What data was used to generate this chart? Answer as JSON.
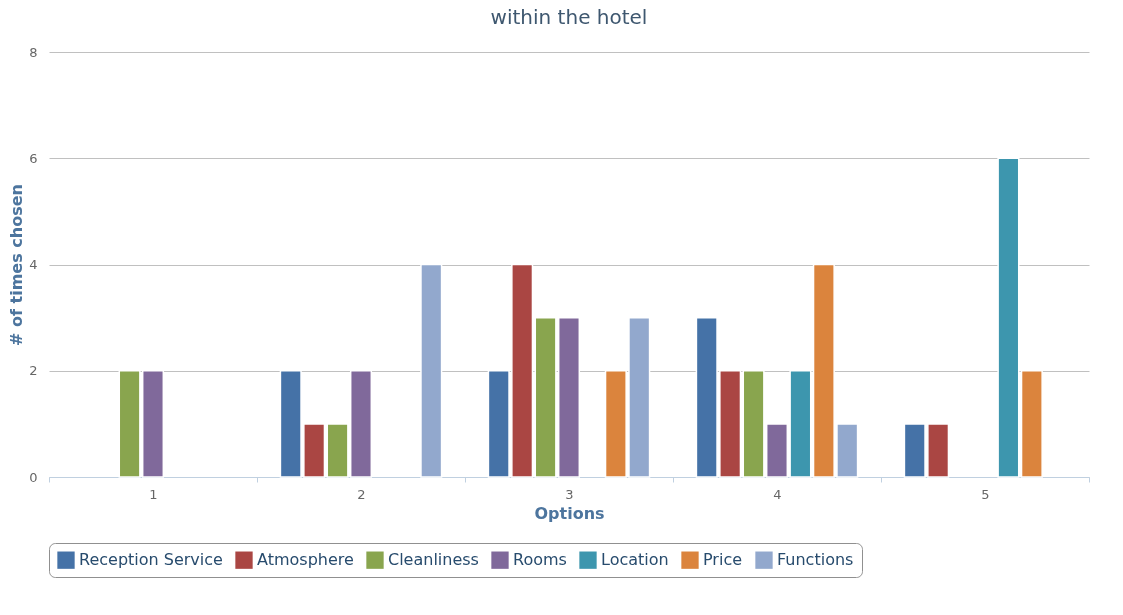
{
  "chart_data": {
    "type": "bar",
    "title": "within the hotel",
    "xlabel": "Options",
    "ylabel": "# of times chosen",
    "categories": [
      "1",
      "2",
      "3",
      "4",
      "5"
    ],
    "series": [
      {
        "name": "Reception Service",
        "color": "#4572a7",
        "values": [
          0,
          2,
          2,
          3,
          1
        ]
      },
      {
        "name": "Atmosphere",
        "color": "#aa4643",
        "values": [
          0,
          1,
          4,
          2,
          1
        ]
      },
      {
        "name": "Cleanliness",
        "color": "#89a54e",
        "values": [
          2,
          1,
          3,
          2,
          0
        ]
      },
      {
        "name": "Rooms",
        "color": "#80699b",
        "values": [
          2,
          2,
          3,
          1,
          0
        ]
      },
      {
        "name": "Location",
        "color": "#3d96ae",
        "values": [
          0,
          0,
          0,
          2,
          6
        ]
      },
      {
        "name": "Price",
        "color": "#db843d",
        "values": [
          0,
          0,
          2,
          4,
          2
        ]
      },
      {
        "name": "Functions",
        "color": "#92a8cd",
        "values": [
          0,
          4,
          3,
          1,
          0
        ]
      }
    ],
    "ylim": [
      0,
      8
    ],
    "yticks": [
      0,
      2,
      4,
      6,
      8
    ],
    "grid": "y",
    "legend": "bottom"
  }
}
